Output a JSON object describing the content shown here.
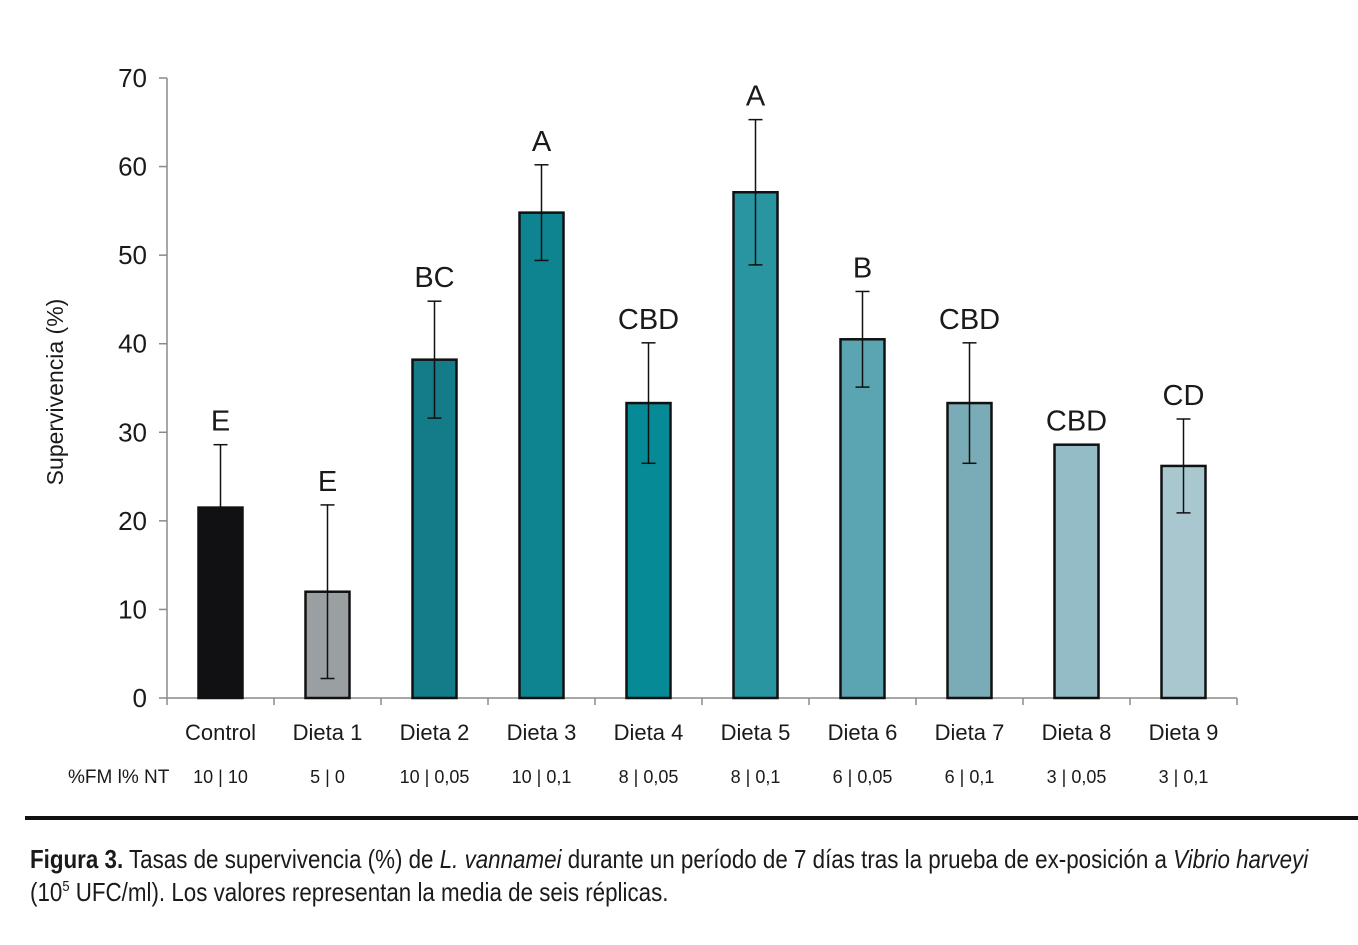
{
  "chart_data": {
    "type": "bar",
    "ylabel": "Supervivencia (%)",
    "ylim": [
      0,
      70
    ],
    "yticks": [
      0,
      10,
      20,
      30,
      40,
      50,
      60,
      70
    ],
    "categories": [
      "Control",
      "Dieta 1",
      "Dieta 2",
      "Dieta 3",
      "Dieta 4",
      "Dieta 5",
      "Dieta 6",
      "Dieta 7",
      "Dieta 8",
      "Dieta 9"
    ],
    "values": [
      21.5,
      12.0,
      38.2,
      54.8,
      33.3,
      57.1,
      40.5,
      33.3,
      28.6,
      26.2
    ],
    "errors": [
      7.1,
      9.8,
      6.6,
      5.4,
      6.8,
      8.2,
      5.4,
      6.8,
      0,
      5.3
    ],
    "letters": [
      "E",
      "E",
      "BC",
      "A",
      "CBD",
      "A",
      "B",
      "CBD",
      "CBD",
      "CD"
    ],
    "colors": [
      "#111114",
      "#9a9fa1",
      "#137c88",
      "#0e8491",
      "#068b96",
      "#2895a0",
      "#5aa5b1",
      "#79acb6",
      "#93bcc6",
      "#a9c7ce"
    ],
    "row_label": "%FM l% NT",
    "row_values": [
      "10 | 10",
      "5 | 0",
      "10 | 0,05",
      "10 | 0,1",
      "8 | 0,05",
      "8 | 0,1",
      "6 | 0,05",
      "6 | 0,1",
      "3 | 0,05",
      "3 | 0,1"
    ]
  },
  "caption": {
    "figure_label": "Figura 3.",
    "text_1": " Tasas de supervivencia (%) de ",
    "species": "L. vannamei",
    "text_2": " durante un período de 7 días tras la prueba de ex-posición a ",
    "pathogen": "Vibrio harveyi",
    "text_3": " (10",
    "exponent": "5",
    "text_4": " UFC/ml). Los valores representan la media de seis réplicas."
  }
}
